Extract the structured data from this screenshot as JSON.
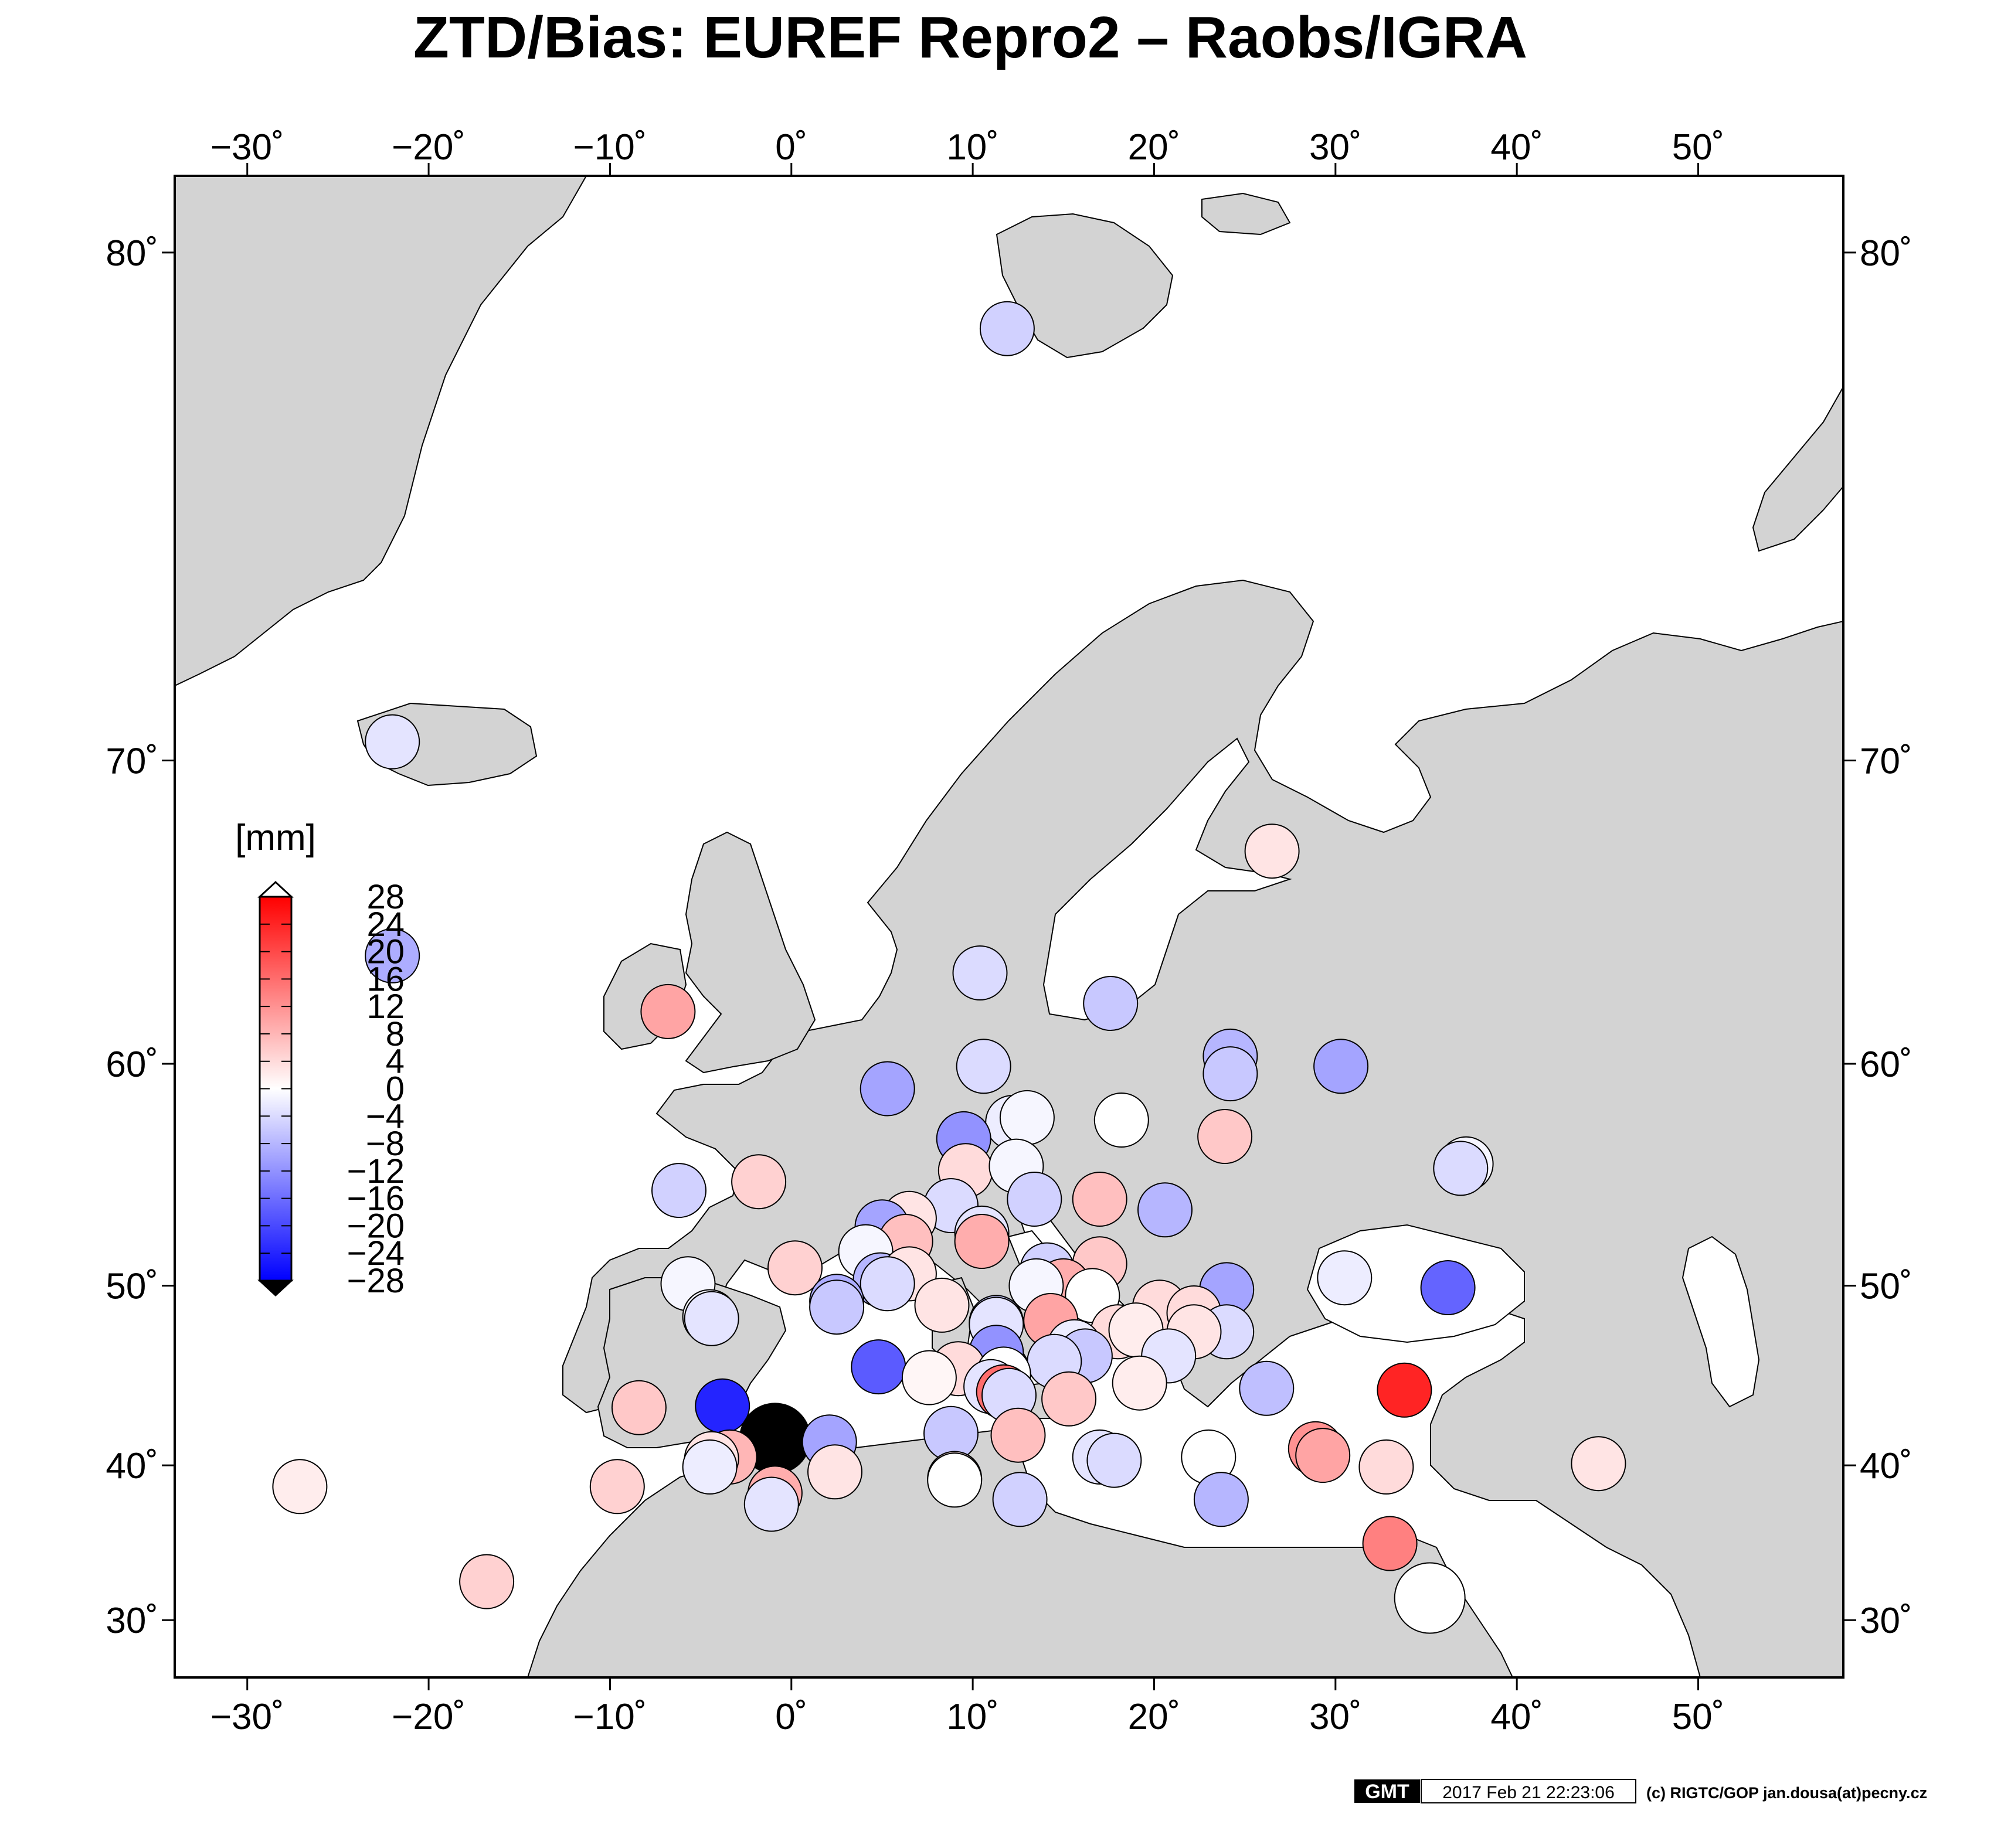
{
  "title": "ZTD/Bias:  EUREF Repro2 – Raobs/IGRA",
  "colorbar": {
    "unit_label": "[mm]",
    "min": -28,
    "max": 28,
    "tick_labels": [
      "28",
      "24",
      "20",
      "16",
      "12",
      "8",
      "4",
      "0",
      "−4",
      "−8",
      "−12",
      "−16",
      "−20",
      "−24",
      "−28"
    ],
    "colors": {
      "negative": "#0000ff",
      "neutral": "#ffffff",
      "positive": "#ff0000",
      "over": "#ffffff",
      "under": "#000000"
    }
  },
  "map": {
    "lon_range": [
      -34,
      58
    ],
    "lat_range": [
      26,
      81
    ],
    "projection": "mercator",
    "lon_tick_labels": [
      {
        "lon": -30,
        "label": "−30˚"
      },
      {
        "lon": -20,
        "label": "−20˚"
      },
      {
        "lon": -10,
        "label": "−10˚"
      },
      {
        "lon": 0,
        "label": "0˚"
      },
      {
        "lon": 10,
        "label": "10˚"
      },
      {
        "lon": 20,
        "label": "20˚"
      },
      {
        "lon": 30,
        "label": "30˚"
      },
      {
        "lon": 40,
        "label": "40˚"
      },
      {
        "lon": 50,
        "label": "50˚"
      }
    ],
    "lat_tick_labels": [
      {
        "lat": 30,
        "label": "30˚"
      },
      {
        "lat": 40,
        "label": "40˚"
      },
      {
        "lat": 50,
        "label": "50˚"
      },
      {
        "lat": 60,
        "label": "60˚"
      },
      {
        "lat": 70,
        "label": "70˚"
      },
      {
        "lat": 80,
        "label": "80˚"
      }
    ],
    "land_color": "#d3d3d3",
    "sea_color": "#ffffff"
  },
  "chart_data": {
    "type": "scatter",
    "x_label": "",
    "y_label": "",
    "points": [
      {
        "lon": 11.9,
        "lat": 78.9,
        "bias": -5
      },
      {
        "lon": -22.0,
        "lat": 70.5,
        "bias": -3
      },
      {
        "lon": -22.0,
        "lat": 64.0,
        "bias": -9
      },
      {
        "lon": -6.8,
        "lat": 62.0,
        "bias": 10
      },
      {
        "lon": 26.5,
        "lat": 67.4,
        "bias": 3
      },
      {
        "lon": 10.4,
        "lat": 63.4,
        "bias": -4
      },
      {
        "lon": 17.6,
        "lat": 62.3,
        "bias": -6
      },
      {
        "lon": 24.2,
        "lat": 60.3,
        "bias": -8
      },
      {
        "lon": 24.2,
        "lat": 59.6,
        "bias": -6
      },
      {
        "lon": 30.3,
        "lat": 59.9,
        "bias": -10
      },
      {
        "lon": 5.3,
        "lat": 59.0,
        "bias": -10
      },
      {
        "lon": 10.6,
        "lat": 59.9,
        "bias": -4
      },
      {
        "lon": 18.2,
        "lat": 57.7,
        "bias": 0
      },
      {
        "lon": 12.2,
        "lat": 57.6,
        "bias": -2
      },
      {
        "lon": 13.0,
        "lat": 57.8,
        "bias": -1
      },
      {
        "lon": 23.9,
        "lat": 57.0,
        "bias": 6
      },
      {
        "lon": 37.2,
        "lat": 55.8,
        "bias": -1
      },
      {
        "lon": 36.9,
        "lat": 55.6,
        "bias": -4
      },
      {
        "lon": 9.5,
        "lat": 56.9,
        "bias": -12
      },
      {
        "lon": 9.6,
        "lat": 55.5,
        "bias": 4
      },
      {
        "lon": 12.4,
        "lat": 55.7,
        "bias": -1
      },
      {
        "lon": -6.2,
        "lat": 54.6,
        "bias": -5
      },
      {
        "lon": -1.8,
        "lat": 55.0,
        "bias": 5
      },
      {
        "lon": 13.4,
        "lat": 54.2,
        "bias": -5
      },
      {
        "lon": 17.0,
        "lat": 54.2,
        "bias": 7
      },
      {
        "lon": 20.6,
        "lat": 53.7,
        "bias": -8
      },
      {
        "lon": 8.8,
        "lat": 53.9,
        "bias": -4
      },
      {
        "lon": 6.5,
        "lat": 53.3,
        "bias": 3
      },
      {
        "lon": 5.0,
        "lat": 52.9,
        "bias": -10
      },
      {
        "lon": 10.5,
        "lat": 52.6,
        "bias": -3
      },
      {
        "lon": 6.3,
        "lat": 52.2,
        "bias": 7
      },
      {
        "lon": 10.5,
        "lat": 52.2,
        "bias": 9
      },
      {
        "lon": 4.1,
        "lat": 51.7,
        "bias": -1
      },
      {
        "lon": 0.2,
        "lat": 50.9,
        "bias": 5
      },
      {
        "lon": 14.1,
        "lat": 50.8,
        "bias": -5
      },
      {
        "lon": 17.0,
        "lat": 51.1,
        "bias": 6
      },
      {
        "lon": 30.5,
        "lat": 50.4,
        "bias": -2
      },
      {
        "lon": 36.2,
        "lat": 49.9,
        "bias": -17
      },
      {
        "lon": -5.7,
        "lat": 50.1,
        "bias": -1
      },
      {
        "lon": 4.9,
        "lat": 50.3,
        "bias": -8
      },
      {
        "lon": 6.5,
        "lat": 50.6,
        "bias": 3
      },
      {
        "lon": 5.3,
        "lat": 50.1,
        "bias": -4
      },
      {
        "lon": 15.0,
        "lat": 50.0,
        "bias": 9
      },
      {
        "lon": 13.5,
        "lat": 50.0,
        "bias": -1
      },
      {
        "lon": 16.6,
        "lat": 49.5,
        "bias": 0
      },
      {
        "lon": 24.0,
        "lat": 49.8,
        "bias": -10
      },
      {
        "lon": 2.5,
        "lat": 49.2,
        "bias": -9
      },
      {
        "lon": 2.5,
        "lat": 48.9,
        "bias": -6
      },
      {
        "lon": 8.3,
        "lat": 49.0,
        "bias": 3
      },
      {
        "lon": 20.3,
        "lat": 48.9,
        "bias": 4
      },
      {
        "lon": 22.2,
        "lat": 48.6,
        "bias": 4
      },
      {
        "lon": -4.5,
        "lat": 48.4,
        "bias": -1
      },
      {
        "lon": -4.4,
        "lat": 48.3,
        "bias": -3
      },
      {
        "lon": 11.3,
        "lat": 48.1,
        "bias": -6
      },
      {
        "lon": 11.3,
        "lat": 48.0,
        "bias": -3
      },
      {
        "lon": 14.3,
        "lat": 48.2,
        "bias": 10
      },
      {
        "lon": 18.0,
        "lat": 47.6,
        "bias": 4
      },
      {
        "lon": 19.0,
        "lat": 47.7,
        "bias": 2
      },
      {
        "lon": 24.0,
        "lat": 47.6,
        "bias": -4
      },
      {
        "lon": 22.2,
        "lat": 47.6,
        "bias": 3
      },
      {
        "lon": 15.6,
        "lat": 46.8,
        "bias": -2
      },
      {
        "lon": 11.3,
        "lat": 46.5,
        "bias": -12
      },
      {
        "lon": 16.2,
        "lat": 46.3,
        "bias": -6
      },
      {
        "lon": 20.8,
        "lat": 46.3,
        "bias": -3
      },
      {
        "lon": 14.5,
        "lat": 46.0,
        "bias": -4
      },
      {
        "lon": 4.8,
        "lat": 45.7,
        "bias": -18
      },
      {
        "lon": 9.2,
        "lat": 45.6,
        "bias": 4
      },
      {
        "lon": 7.6,
        "lat": 45.1,
        "bias": 1
      },
      {
        "lon": 11.7,
        "lat": 45.3,
        "bias": 0
      },
      {
        "lon": 11.0,
        "lat": 44.6,
        "bias": -3
      },
      {
        "lon": 11.7,
        "lat": 44.3,
        "bias": 16
      },
      {
        "lon": 12.0,
        "lat": 44.1,
        "bias": -4
      },
      {
        "lon": 19.2,
        "lat": 44.8,
        "bias": 2
      },
      {
        "lon": 15.3,
        "lat": 43.9,
        "bias": 6
      },
      {
        "lon": 26.2,
        "lat": 44.5,
        "bias": -7
      },
      {
        "lon": 33.8,
        "lat": 44.4,
        "bias": 24
      },
      {
        "lon": -8.4,
        "lat": 43.4,
        "bias": 6
      },
      {
        "lon": -3.8,
        "lat": 43.5,
        "bias": -24
      },
      {
        "lon": 8.8,
        "lat": 41.9,
        "bias": -6
      },
      {
        "lon": 12.5,
        "lat": 41.8,
        "bias": 7
      },
      {
        "lon": -0.9,
        "lat": 41.6,
        "bias": -40
      },
      {
        "lon": 2.1,
        "lat": 41.4,
        "bias": -10
      },
      {
        "lon": 28.9,
        "lat": 41.0,
        "bias": 12
      },
      {
        "lon": 29.3,
        "lat": 40.6,
        "bias": 10
      },
      {
        "lon": 23.0,
        "lat": 40.5,
        "bias": 0
      },
      {
        "lon": -3.4,
        "lat": 40.5,
        "bias": 8
      },
      {
        "lon": -4.4,
        "lat": 40.4,
        "bias": 3
      },
      {
        "lon": -4.5,
        "lat": 39.9,
        "bias": -2
      },
      {
        "lon": 17.0,
        "lat": 40.5,
        "bias": -3
      },
      {
        "lon": 17.8,
        "lat": 40.3,
        "bias": -4
      },
      {
        "lon": 32.8,
        "lat": 39.9,
        "bias": 4
      },
      {
        "lon": 44.5,
        "lat": 40.1,
        "bias": 3
      },
      {
        "lon": 2.4,
        "lat": 39.6,
        "bias": 3
      },
      {
        "lon": -9.6,
        "lat": 38.7,
        "bias": 5
      },
      {
        "lon": -27.1,
        "lat": 38.7,
        "bias": 2
      },
      {
        "lon": 9.0,
        "lat": 39.2,
        "bias": 3
      },
      {
        "lon": 9.0,
        "lat": 39.1,
        "bias": 0
      },
      {
        "lon": -0.9,
        "lat": 38.3,
        "bias": 9
      },
      {
        "lon": 23.7,
        "lat": 37.9,
        "bias": -8
      },
      {
        "lon": 12.6,
        "lat": 37.9,
        "bias": -5
      },
      {
        "lon": -1.1,
        "lat": 37.6,
        "bias": -3
      },
      {
        "lon": 33.0,
        "lat": 35.1,
        "bias": 14
      },
      {
        "lon": 35.2,
        "lat": 31.5,
        "bias": 40
      },
      {
        "lon": -16.8,
        "lat": 32.6,
        "bias": 5
      }
    ]
  },
  "footer": {
    "gmt_badge": "GMT",
    "timestamp": "2017 Feb 21 22:23:06",
    "credit": "(c) RIGTC/GOP jan.dousa(at)pecny.cz"
  }
}
